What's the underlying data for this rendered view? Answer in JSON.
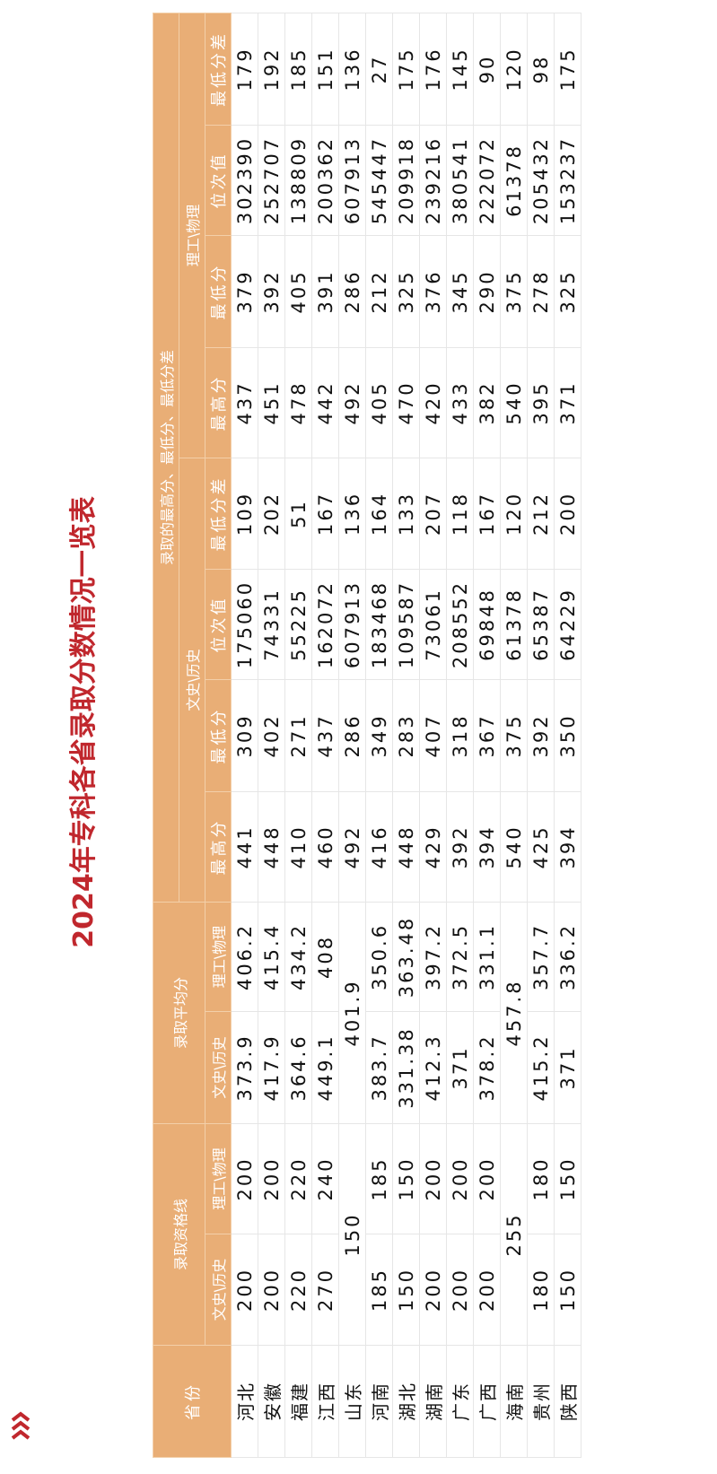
{
  "title": "2024年专科各省录取分数情况一览表",
  "colors": {
    "header_bg": "#E9AE76",
    "title": "#C0272D",
    "header_text": "#FFFFFF"
  },
  "icon": "triple-chevron-icon",
  "table": {
    "headers": {
      "province": "省份",
      "qualify": "录取资格线",
      "average": "录取平均分",
      "range": "录取的最高分、最低分、最低分差",
      "wen": "文史\\历史",
      "li": "理工\\物理",
      "max": "最高分",
      "min": "最低分",
      "rank": "位次值",
      "diff": "最低分差"
    },
    "rows": [
      {
        "province": "河北",
        "qualify": [
          "200",
          "200"
        ],
        "average": [
          "373.9",
          "406.2"
        ],
        "wen": [
          "441",
          "309",
          "175060",
          "109"
        ],
        "li": [
          "437",
          "379",
          "302390",
          "179"
        ]
      },
      {
        "province": "安徽",
        "qualify": [
          "200",
          "200"
        ],
        "average": [
          "417.9",
          "415.4"
        ],
        "wen": [
          "448",
          "402",
          "74331",
          "202"
        ],
        "li": [
          "451",
          "392",
          "252707",
          "192"
        ]
      },
      {
        "province": "福建",
        "qualify": [
          "220",
          "220"
        ],
        "average": [
          "364.6",
          "434.2"
        ],
        "wen": [
          "410",
          "271",
          "55225",
          "51"
        ],
        "li": [
          "478",
          "405",
          "138809",
          "185"
        ]
      },
      {
        "province": "江西",
        "qualify": [
          "270",
          "240"
        ],
        "average": [
          "449.1",
          "408"
        ],
        "wen": [
          "460",
          "437",
          "162072",
          "167"
        ],
        "li": [
          "442",
          "391",
          "200362",
          "151"
        ]
      },
      {
        "province": "山东",
        "qualify": [
          "150"
        ],
        "average": [
          "401.9"
        ],
        "wen": [
          "492",
          "286",
          "607913",
          "136"
        ],
        "li": [
          "492",
          "286",
          "607913",
          "136"
        ]
      },
      {
        "province": "河南",
        "qualify": [
          "185",
          "185"
        ],
        "average": [
          "383.7",
          "350.6"
        ],
        "wen": [
          "416",
          "349",
          "183468",
          "164"
        ],
        "li": [
          "405",
          "212",
          "545447",
          "27"
        ]
      },
      {
        "province": "湖北",
        "qualify": [
          "150",
          "150"
        ],
        "average": [
          "331.38",
          "363.48"
        ],
        "wen": [
          "448",
          "283",
          "109587",
          "133"
        ],
        "li": [
          "470",
          "325",
          "209918",
          "175"
        ]
      },
      {
        "province": "湖南",
        "qualify": [
          "200",
          "200"
        ],
        "average": [
          "412.3",
          "397.2"
        ],
        "wen": [
          "429",
          "407",
          "73061",
          "207"
        ],
        "li": [
          "420",
          "376",
          "239216",
          "176"
        ]
      },
      {
        "province": "广东",
        "qualify": [
          "200",
          "200"
        ],
        "average": [
          "371",
          "372.5"
        ],
        "wen": [
          "392",
          "318",
          "208552",
          "118"
        ],
        "li": [
          "433",
          "345",
          "380541",
          "145"
        ]
      },
      {
        "province": "广西",
        "qualify": [
          "200",
          "200"
        ],
        "average": [
          "378.2",
          "331.1"
        ],
        "wen": [
          "394",
          "367",
          "69848",
          "167"
        ],
        "li": [
          "382",
          "290",
          "222072",
          "90"
        ]
      },
      {
        "province": "海南",
        "qualify": [
          "255"
        ],
        "average": [
          "457.8"
        ],
        "wen": [
          "540",
          "375",
          "61378",
          "120"
        ],
        "li": [
          "540",
          "375",
          "61378",
          "120"
        ]
      },
      {
        "province": "贵州",
        "qualify": [
          "180",
          "180"
        ],
        "average": [
          "415.2",
          "357.7"
        ],
        "wen": [
          "425",
          "392",
          "65387",
          "212"
        ],
        "li": [
          "395",
          "278",
          "205432",
          "98"
        ]
      },
      {
        "province": "陕西",
        "qualify": [
          "150",
          "150"
        ],
        "average": [
          "371",
          "336.2"
        ],
        "wen": [
          "394",
          "350",
          "64229",
          "200"
        ],
        "li": [
          "371",
          "325",
          "153237",
          "175"
        ]
      }
    ]
  }
}
